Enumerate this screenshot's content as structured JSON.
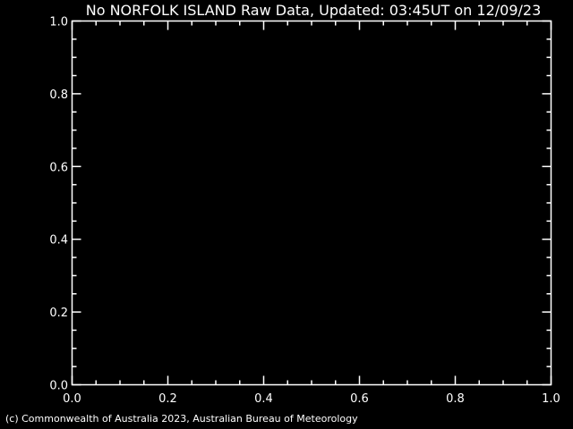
{
  "title": "No NORFOLK ISLAND Raw Data, Updated: 03:45UT on 12/09/23",
  "footer": "(c) Commonwealth of Australia 2023, Australian Bureau of Meteorology",
  "chart_data": {
    "type": "line",
    "title": "No NORFOLK ISLAND Raw Data, Updated: 03:45UT on 12/09/23",
    "series": [],
    "xlim": [
      0.0,
      1.0
    ],
    "ylim": [
      0.0,
      1.0
    ],
    "x_ticks": [
      "0.0",
      "0.2",
      "0.4",
      "0.6",
      "0.8",
      "1.0"
    ],
    "y_ticks": [
      "0.0",
      "0.2",
      "0.4",
      "0.6",
      "0.8",
      "1.0"
    ],
    "minor_ticks_per_major": 3,
    "grid": false,
    "colors": {
      "background": "#000000",
      "foreground": "#ffffff"
    }
  }
}
